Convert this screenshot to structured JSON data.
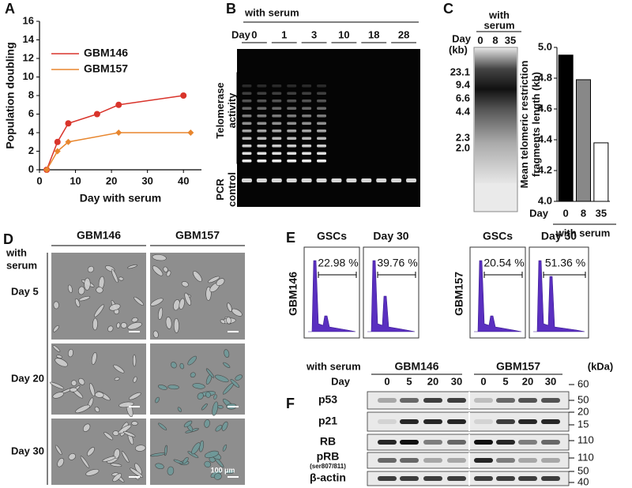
{
  "chart_data": [
    {
      "type": "line",
      "panel_label": "A",
      "xlabel": "Day with serum",
      "ylabel": "Population doubling",
      "xlim": [
        0,
        45
      ],
      "xticks": [
        0,
        10,
        20,
        30,
        40
      ],
      "ylim": [
        0,
        16
      ],
      "yticks": [
        0,
        2,
        4,
        6,
        8,
        10,
        12,
        14,
        16
      ],
      "series": [
        {
          "name": "GBM146",
          "color": "#d9342b",
          "marker": "circle",
          "x": [
            2,
            5,
            8,
            16,
            22,
            40
          ],
          "values": [
            0,
            3,
            5,
            6,
            7,
            8
          ]
        },
        {
          "name": "GBM157",
          "color": "#e8862e",
          "marker": "diamond",
          "x": [
            2,
            5,
            8,
            22,
            42
          ],
          "values": [
            0,
            2,
            3,
            4,
            4
          ]
        }
      ]
    },
    {
      "type": "bar",
      "ylabel": [
        "Mean telomeric restriction",
        "fragments length (kb)"
      ],
      "x_prefix": "Day",
      "xlabel": "with serum",
      "categories": [
        "0",
        "8",
        "35"
      ],
      "values": [
        4.95,
        4.79,
        4.38
      ],
      "colors": [
        "#000000",
        "#888888",
        "#ffffff"
      ],
      "ylim": [
        4.0,
        5.0
      ],
      "yticks": [
        {
          "value": 4.0,
          "label": "4.0"
        },
        4.2,
        4.4,
        4.6,
        4.8,
        {
          "value": 5.0,
          "label": "5.0"
        }
      ]
    }
  ],
  "panel_b": {
    "letter": "B",
    "with_serum": "with serum",
    "day": "Day",
    "days": [
      "0",
      "1",
      "3",
      "10",
      "18",
      "28"
    ],
    "telomerase": [
      "Telomerase",
      "activity"
    ],
    "pcr": [
      "PCR",
      "control"
    ]
  },
  "panel_c": {
    "letter": "C",
    "with_serum": [
      "with",
      "serum"
    ],
    "day": "Day",
    "kb": "(kb)",
    "lanes": [
      "0",
      "8",
      "35"
    ],
    "markers": [
      "23.1",
      "9.4",
      "6.6",
      "4.4",
      "2.3",
      "2.0"
    ]
  },
  "panel_d": {
    "letter": "D",
    "with_serum": [
      "with",
      "serum"
    ],
    "columns": [
      "GBM146",
      "GBM157"
    ],
    "rows": [
      "Day 5",
      "Day 20",
      "Day 30"
    ],
    "scale": "100 µm"
  },
  "panel_e": {
    "letter": "E",
    "groups": [
      {
        "name": "GBM146",
        "plots": [
          {
            "title": "GSCs",
            "percent": "22.98 %"
          },
          {
            "title": "Day 30",
            "percent": "39.76 %"
          }
        ]
      },
      {
        "name": "GBM157",
        "plots": [
          {
            "title": "GSCs",
            "percent": "20.54 %"
          },
          {
            "title": "Day 30",
            "percent": "51.36 %"
          }
        ]
      }
    ]
  },
  "panel_f": {
    "letter": "F",
    "with_serum": "with serum",
    "day": "Day",
    "groups": [
      "GBM146",
      "GBM157"
    ],
    "days": [
      "0",
      "5",
      "20",
      "30",
      "0",
      "5",
      "20",
      "30"
    ],
    "kda": "(kDa)",
    "proteins": [
      "p53",
      "p21",
      "RB",
      "pRB",
      "β-actin"
    ],
    "prb_site": "(ser807/811)",
    "markers": [
      "60",
      "50",
      "20",
      "15",
      "110",
      "110",
      "50",
      "40"
    ]
  }
}
